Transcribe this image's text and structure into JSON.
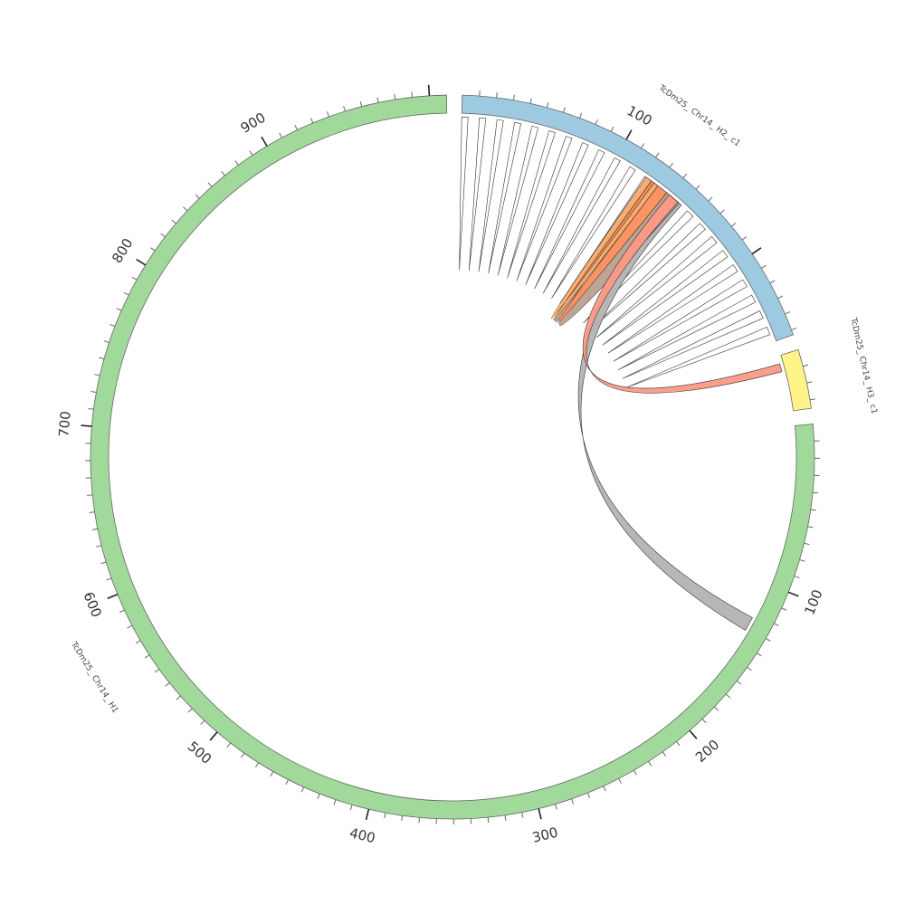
{
  "chart_data": {
    "type": "chord",
    "chromosomes": [
      {
        "name": "TcDm25_Chr14_H1",
        "label": "TcDm25_ Chr14_ H1",
        "length": 1010,
        "color": "#a1d99b",
        "tick_labels": [
          "100",
          "200",
          "300",
          "400",
          "500",
          "600",
          "700",
          "800",
          "900"
        ]
      },
      {
        "name": "TcDm25_Chr14_H2_c1",
        "label": "TcDm25_ Chr14_ H2_ c1",
        "length": 253,
        "color": "#9ecae1",
        "tick_labels": [
          "100"
        ]
      },
      {
        "name": "TcDm25_Chr14_H3_c1",
        "label": "TcDm25_ Chr14_ H3_ c1",
        "length": 35,
        "color": "#fff48a",
        "tick_labels": []
      }
    ],
    "tick_major": 100,
    "tick_minor": 10,
    "links": [
      {
        "source": "TcDm25_Chr14_H2_c1",
        "source_range": [
          0,
          4
        ],
        "target": "TcDm25_Chr14_H2_c1",
        "target_range": [
          0,
          4
        ],
        "color": "#ffffff"
      },
      {
        "source": "TcDm25_Chr14_H2_c1",
        "source_range": [
          11,
          15
        ],
        "target": "TcDm25_Chr14_H2_c1",
        "target_range": [
          11,
          15
        ],
        "color": "#ffffff"
      },
      {
        "source": "TcDm25_Chr14_H2_c1",
        "source_range": [
          22,
          26
        ],
        "target": "TcDm25_Chr14_H2_c1",
        "target_range": [
          22,
          26
        ],
        "color": "#ffffff"
      },
      {
        "source": "TcDm25_Chr14_H2_c1",
        "source_range": [
          33,
          37
        ],
        "target": "TcDm25_Chr14_H2_c1",
        "target_range": [
          33,
          37
        ],
        "color": "#ffffff"
      },
      {
        "source": "TcDm25_Chr14_H2_c1",
        "source_range": [
          44,
          48
        ],
        "target": "TcDm25_Chr14_H2_c1",
        "target_range": [
          44,
          48
        ],
        "color": "#ffffff"
      },
      {
        "source": "TcDm25_Chr14_H2_c1",
        "source_range": [
          55,
          59
        ],
        "target": "TcDm25_Chr14_H2_c1",
        "target_range": [
          55,
          59
        ],
        "color": "#ffffff"
      },
      {
        "source": "TcDm25_Chr14_H2_c1",
        "source_range": [
          66,
          70
        ],
        "target": "TcDm25_Chr14_H2_c1",
        "target_range": [
          66,
          70
        ],
        "color": "#ffffff"
      },
      {
        "source": "TcDm25_Chr14_H2_c1",
        "source_range": [
          77,
          81
        ],
        "target": "TcDm25_Chr14_H2_c1",
        "target_range": [
          77,
          81
        ],
        "color": "#ffffff"
      },
      {
        "source": "TcDm25_Chr14_H2_c1",
        "source_range": [
          88,
          92
        ],
        "target": "TcDm25_Chr14_H2_c1",
        "target_range": [
          88,
          92
        ],
        "color": "#ffffff"
      },
      {
        "source": "TcDm25_Chr14_H2_c1",
        "source_range": [
          99,
          103
        ],
        "target": "TcDm25_Chr14_H2_c1",
        "target_range": [
          99,
          103
        ],
        "color": "#ffffff"
      },
      {
        "source": "TcDm25_Chr14_H2_c1",
        "source_range": [
          110,
          114
        ],
        "target": "TcDm25_Chr14_H2_c1",
        "target_range": [
          110,
          114
        ],
        "color": "#ffffff"
      },
      {
        "source": "TcDm25_Chr14_H2_c1",
        "source_range": [
          121,
          125
        ],
        "target": "TcDm25_Chr14_H2_c1",
        "target_range": [
          121,
          125
        ],
        "color": "#ffffff"
      },
      {
        "source": "TcDm25_Chr14_H2_c1",
        "source_range": [
          155,
          160
        ],
        "target": "TcDm25_Chr14_H2_c1",
        "target_range": [
          155,
          160
        ],
        "color": "#ffffff"
      },
      {
        "source": "TcDm25_Chr14_H2_c1",
        "source_range": [
          166,
          171
        ],
        "target": "TcDm25_Chr14_H2_c1",
        "target_range": [
          166,
          171
        ],
        "color": "#ffffff"
      },
      {
        "source": "TcDm25_Chr14_H2_c1",
        "source_range": [
          177,
          182
        ],
        "target": "TcDm25_Chr14_H2_c1",
        "target_range": [
          177,
          182
        ],
        "color": "#ffffff"
      },
      {
        "source": "TcDm25_Chr14_H2_c1",
        "source_range": [
          188,
          193
        ],
        "target": "TcDm25_Chr14_H2_c1",
        "target_range": [
          188,
          193
        ],
        "color": "#ffffff"
      },
      {
        "source": "TcDm25_Chr14_H2_c1",
        "source_range": [
          199,
          204
        ],
        "target": "TcDm25_Chr14_H2_c1",
        "target_range": [
          199,
          204
        ],
        "color": "#ffffff"
      },
      {
        "source": "TcDm25_Chr14_H2_c1",
        "source_range": [
          210,
          215
        ],
        "target": "TcDm25_Chr14_H2_c1",
        "target_range": [
          210,
          215
        ],
        "color": "#ffffff"
      },
      {
        "source": "TcDm25_Chr14_H2_c1",
        "source_range": [
          221,
          226
        ],
        "target": "TcDm25_Chr14_H2_c1",
        "target_range": [
          221,
          226
        ],
        "color": "#ffffff"
      },
      {
        "source": "TcDm25_Chr14_H2_c1",
        "source_range": [
          232,
          237
        ],
        "target": "TcDm25_Chr14_H2_c1",
        "target_range": [
          232,
          237
        ],
        "color": "#ffffff"
      },
      {
        "source": "TcDm25_Chr14_H2_c1",
        "source_range": [
          243,
          248
        ],
        "target": "TcDm25_Chr14_H2_c1",
        "target_range": [
          243,
          248
        ],
        "color": "#ffffff"
      },
      {
        "source": "TcDm25_Chr14_H2_c1",
        "source_range": [
          140,
          150
        ],
        "target": "TcDm25_Chr14_H1",
        "target_range": [
          123,
          132
        ],
        "color": "#b3b3b3"
      },
      {
        "source": "TcDm25_Chr14_H2_c1",
        "source_range": [
          138,
          148
        ],
        "target": "TcDm25_Chr14_H2_c1",
        "target_range": [
          124,
          129
        ],
        "color": "#b8a090"
      },
      {
        "source": "TcDm25_Chr14_H2_c1",
        "source_range": [
          130,
          138
        ],
        "target": "TcDm25_Chr14_H2_c1",
        "target_range": [
          126,
          131
        ],
        "color": "#fc8d59"
      },
      {
        "source": "TcDm25_Chr14_H2_c1",
        "source_range": [
          128,
          131
        ],
        "target": "TcDm25_Chr14_H2_c1",
        "target_range": [
          122,
          126
        ],
        "color": "#fdae6b"
      },
      {
        "source": "TcDm25_Chr14_H3_c1",
        "source_range": [
          5,
          10
        ],
        "target": "TcDm25_Chr14_H2_c1",
        "target_range": [
          140,
          147
        ],
        "color": "#fb9a85"
      }
    ]
  }
}
